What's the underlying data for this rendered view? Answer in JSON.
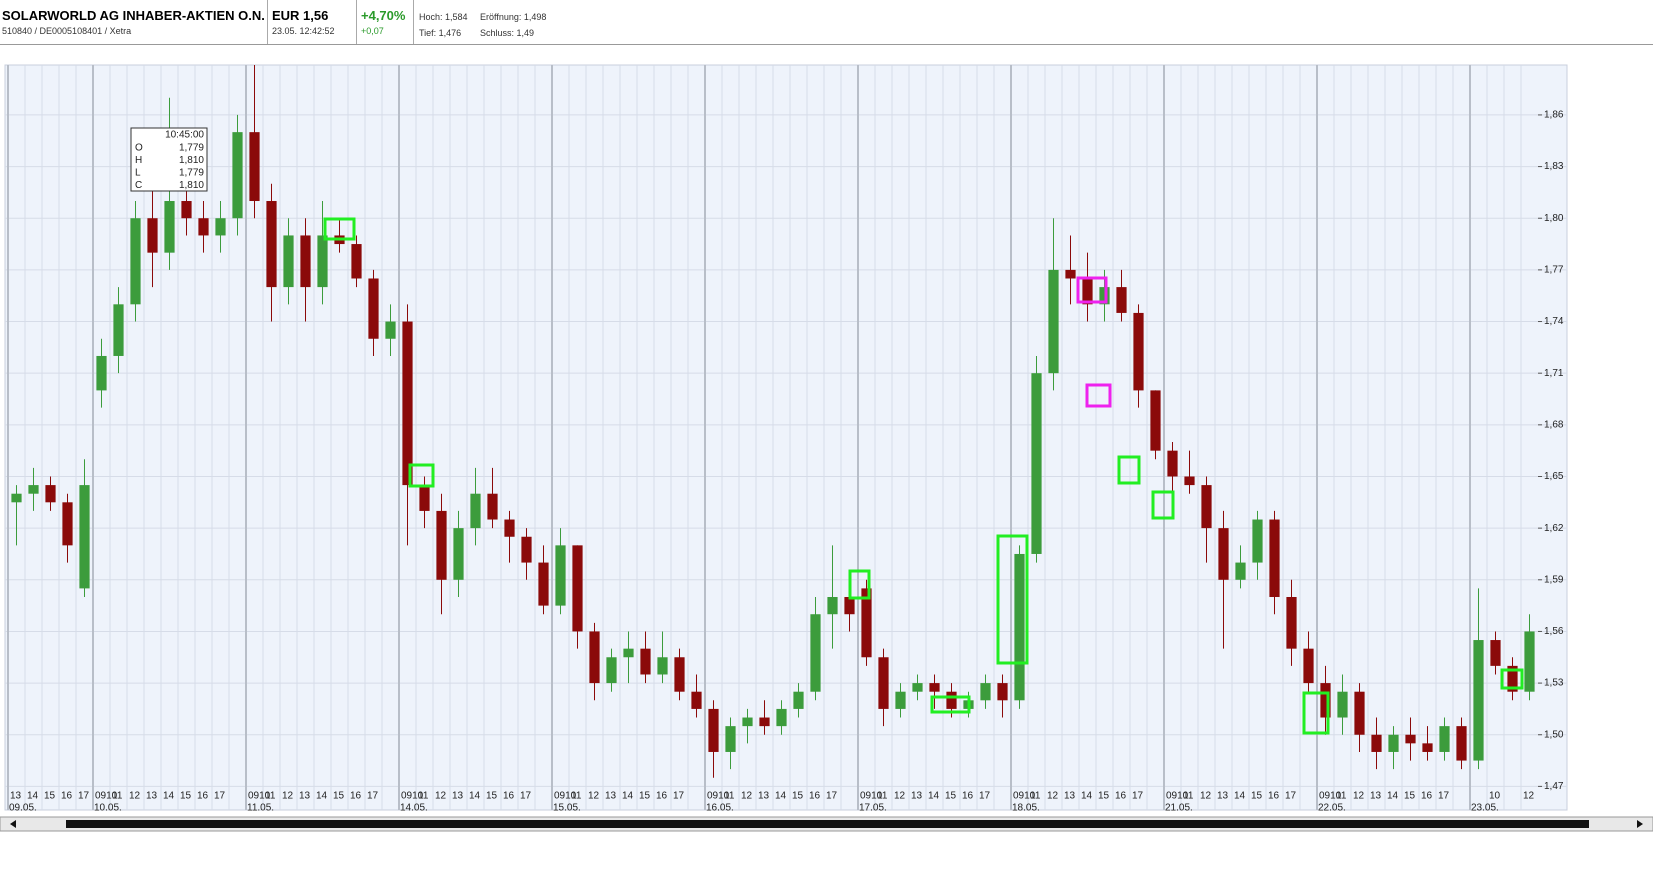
{
  "header": {
    "name": "SOLARWORLD AG INHABER-AKTIEN O.N.",
    "ids": "510840 / DE0005108401 / Xetra",
    "price": "EUR 1,56",
    "time": "23.05. 12:42:52",
    "change_pct": "+4,70%",
    "change_abs": "+0,07",
    "high": "Hoch: 1,584",
    "open": "Eröffnung: 1,498",
    "low": "Tief: 1,476",
    "close": "Schluss: 1,49"
  },
  "tooltip": {
    "time": "10:45:00",
    "rows": [
      [
        "O",
        "1,779"
      ],
      [
        "H",
        "1,810"
      ],
      [
        "L",
        "1,779"
      ],
      [
        "C",
        "1,810"
      ]
    ]
  },
  "chart_data": {
    "type": "candlestick",
    "up_color": "#3c9c3c",
    "down_color": "#8b0a0a",
    "grid": true,
    "ylim": [
      1.465,
      1.889
    ],
    "yticks": [
      {
        "value": 1.47,
        "label": "1,47"
      },
      {
        "value": 1.5,
        "label": "1,50"
      },
      {
        "value": 1.53,
        "label": "1,53"
      },
      {
        "value": 1.56,
        "label": "1,56"
      },
      {
        "value": 1.59,
        "label": "1,59"
      },
      {
        "value": 1.62,
        "label": "1,62"
      },
      {
        "value": 1.65,
        "label": "1,65"
      },
      {
        "value": 1.68,
        "label": "1,68"
      },
      {
        "value": 1.71,
        "label": "1,71"
      },
      {
        "value": 1.74,
        "label": "1,74"
      },
      {
        "value": 1.77,
        "label": "1,77"
      },
      {
        "value": 1.8,
        "label": "1,80"
      },
      {
        "value": 1.83,
        "label": "1,83"
      },
      {
        "value": 1.86,
        "label": "1,86"
      }
    ],
    "categories": [
      "13",
      "14",
      "15",
      "16",
      "17",
      "0910",
      "11",
      "12",
      "13",
      "14",
      "15",
      "16",
      "17",
      "",
      "0910",
      "11",
      "12",
      "13",
      "14",
      "15",
      "16",
      "17",
      "",
      "0910",
      "11",
      "12",
      "13",
      "14",
      "15",
      "16",
      "17",
      "",
      "0910",
      "11",
      "12",
      "13",
      "14",
      "15",
      "16",
      "17",
      "",
      "0910",
      "11",
      "12",
      "13",
      "14",
      "15",
      "16",
      "17",
      "",
      "0910",
      "11",
      "12",
      "13",
      "14",
      "15",
      "16",
      "17",
      "",
      "0910",
      "11",
      "12",
      "13",
      "14",
      "15",
      "16",
      "17",
      "",
      "0910",
      "11",
      "12",
      "13",
      "14",
      "15",
      "16",
      "17",
      "",
      "0910",
      "11",
      "12",
      "13",
      "14",
      "15",
      "16",
      "17",
      "",
      null,
      "10",
      null,
      "12"
    ],
    "day_labels": [
      "09.05.",
      null,
      null,
      null,
      null,
      "10.05.",
      null,
      null,
      null,
      null,
      null,
      null,
      null,
      null,
      "11.05.",
      null,
      null,
      null,
      null,
      null,
      null,
      null,
      null,
      "14.05.",
      null,
      null,
      null,
      null,
      null,
      null,
      null,
      null,
      "15.05.",
      null,
      null,
      null,
      null,
      null,
      null,
      null,
      null,
      "16.05.",
      null,
      null,
      null,
      null,
      null,
      null,
      null,
      null,
      "17.05.",
      null,
      null,
      null,
      null,
      null,
      null,
      null,
      null,
      "18.05.",
      null,
      null,
      null,
      null,
      null,
      null,
      null,
      null,
      "21.05.",
      null,
      null,
      null,
      null,
      null,
      null,
      null,
      null,
      "22.05.",
      null,
      null,
      null,
      null,
      null,
      null,
      null,
      null,
      "23.05.",
      null,
      null,
      null
    ],
    "open": [
      1.635,
      1.64,
      1.645,
      1.635,
      1.585,
      1.7,
      1.72,
      1.75,
      1.8,
      1.78,
      1.81,
      1.8,
      1.79,
      1.8,
      1.85,
      1.81,
      1.76,
      1.79,
      1.76,
      1.79,
      1.785,
      1.765,
      1.73,
      1.74,
      1.645,
      1.63,
      1.59,
      1.62,
      1.64,
      1.625,
      1.615,
      1.6,
      1.575,
      1.61,
      1.56,
      1.53,
      1.545,
      1.55,
      1.535,
      1.545,
      1.525,
      1.515,
      1.49,
      1.505,
      1.51,
      1.505,
      1.515,
      1.525,
      1.57,
      1.58,
      1.585,
      1.545,
      1.515,
      1.525,
      1.53,
      1.525,
      1.515,
      1.52,
      1.53,
      1.52,
      1.605,
      1.71,
      1.77,
      1.765,
      1.75,
      1.76,
      1.745,
      1.7,
      1.665,
      1.65,
      1.645,
      1.62,
      1.59,
      1.6,
      1.625,
      1.58,
      1.55,
      1.53,
      1.51,
      1.525,
      1.5,
      1.49,
      1.5,
      1.495,
      1.49,
      1.505,
      1.485,
      1.555,
      1.54,
      1.525
    ],
    "high": [
      1.645,
      1.655,
      1.65,
      1.64,
      1.66,
      1.73,
      1.76,
      1.81,
      1.82,
      1.87,
      1.83,
      1.81,
      1.81,
      1.86,
      1.889,
      1.82,
      1.8,
      1.8,
      1.81,
      1.8,
      1.79,
      1.77,
      1.75,
      1.75,
      1.65,
      1.64,
      1.63,
      1.655,
      1.655,
      1.63,
      1.62,
      1.61,
      1.62,
      1.61,
      1.565,
      1.55,
      1.56,
      1.56,
      1.56,
      1.55,
      1.535,
      1.52,
      1.51,
      1.515,
      1.52,
      1.52,
      1.53,
      1.58,
      1.61,
      1.59,
      1.59,
      1.55,
      1.53,
      1.535,
      1.535,
      1.53,
      1.525,
      1.535,
      1.535,
      1.61,
      1.72,
      1.8,
      1.79,
      1.78,
      1.77,
      1.77,
      1.75,
      1.7,
      1.67,
      1.665,
      1.65,
      1.63,
      1.61,
      1.63,
      1.63,
      1.59,
      1.56,
      1.54,
      1.535,
      1.53,
      1.51,
      1.505,
      1.51,
      1.505,
      1.51,
      1.51,
      1.585,
      1.56,
      1.545,
      1.57
    ],
    "low": [
      1.61,
      1.63,
      1.63,
      1.6,
      1.58,
      1.69,
      1.71,
      1.74,
      1.76,
      1.77,
      1.79,
      1.78,
      1.78,
      1.79,
      1.8,
      1.74,
      1.75,
      1.74,
      1.75,
      1.78,
      1.76,
      1.72,
      1.72,
      1.61,
      1.62,
      1.57,
      1.58,
      1.61,
      1.62,
      1.6,
      1.59,
      1.57,
      1.57,
      1.55,
      1.52,
      1.525,
      1.53,
      1.53,
      1.53,
      1.52,
      1.51,
      1.475,
      1.48,
      1.495,
      1.5,
      1.5,
      1.51,
      1.52,
      1.55,
      1.56,
      1.54,
      1.505,
      1.51,
      1.52,
      1.515,
      1.51,
      1.51,
      1.515,
      1.51,
      1.515,
      1.6,
      1.7,
      1.75,
      1.74,
      1.74,
      1.74,
      1.69,
      1.66,
      1.63,
      1.64,
      1.6,
      1.55,
      1.585,
      1.59,
      1.57,
      1.54,
      1.525,
      1.5,
      1.5,
      1.49,
      1.48,
      1.48,
      1.485,
      1.485,
      1.485,
      1.48,
      1.48,
      1.535,
      1.52,
      1.52
    ],
    "close": [
      1.64,
      1.645,
      1.635,
      1.61,
      1.645,
      1.72,
      1.75,
      1.8,
      1.78,
      1.81,
      1.8,
      1.79,
      1.8,
      1.85,
      1.81,
      1.76,
      1.79,
      1.76,
      1.79,
      1.785,
      1.765,
      1.73,
      1.74,
      1.645,
      1.63,
      1.59,
      1.62,
      1.64,
      1.625,
      1.615,
      1.6,
      1.575,
      1.61,
      1.56,
      1.53,
      1.545,
      1.55,
      1.535,
      1.545,
      1.525,
      1.515,
      1.49,
      1.505,
      1.51,
      1.505,
      1.515,
      1.525,
      1.57,
      1.58,
      1.57,
      1.545,
      1.515,
      1.525,
      1.53,
      1.525,
      1.515,
      1.52,
      1.53,
      1.52,
      1.605,
      1.71,
      1.77,
      1.765,
      1.75,
      1.76,
      1.745,
      1.7,
      1.665,
      1.65,
      1.645,
      1.62,
      1.59,
      1.6,
      1.625,
      1.58,
      1.55,
      1.53,
      1.51,
      1.525,
      1.5,
      1.49,
      1.5,
      1.495,
      1.49,
      1.505,
      1.485,
      1.555,
      1.54,
      1.525,
      1.56
    ]
  }
}
